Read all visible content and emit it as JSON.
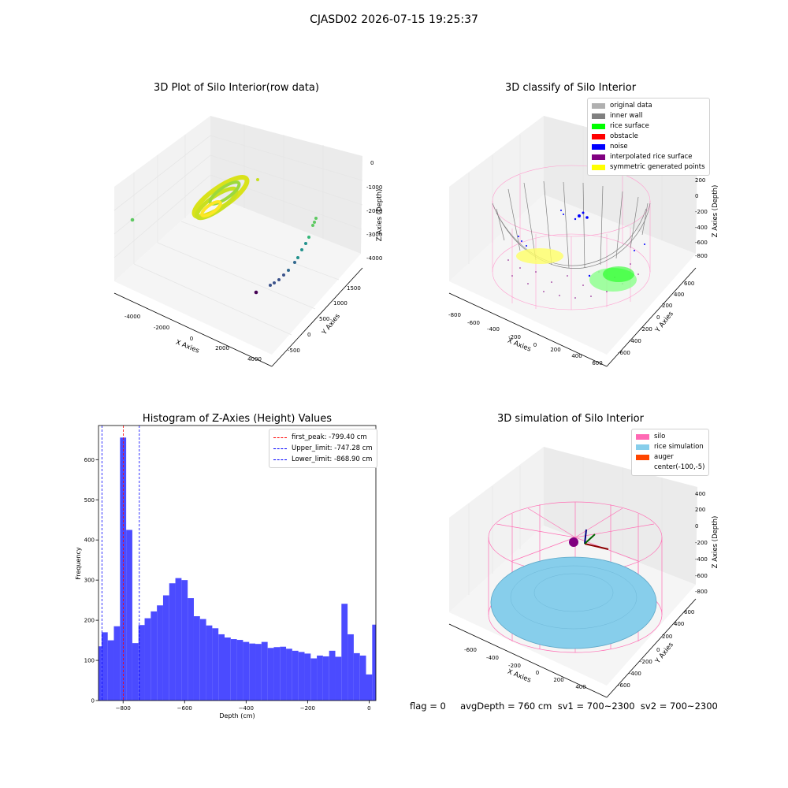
{
  "suptitle": "CJASD02 2026-07-15 19:25:37",
  "chart_data": [
    {
      "type": "scatter",
      "title": "3D Plot of Silo Interior(row data)",
      "xlabel": "X Axies",
      "ylabel": "Y Axies",
      "zlabel": "Z Axies (Depth)",
      "x_ticks": [
        "-4000",
        "-2000",
        "0",
        "2000",
        "4000"
      ],
      "y_ticks": [
        "-500",
        "0",
        "500",
        "1000",
        "1500"
      ],
      "z_ticks": [
        "0",
        "-1000",
        "-2000",
        "-3000",
        "-4000"
      ],
      "colormap": [
        "#440154",
        "#3b528b",
        "#21918c",
        "#5ec962",
        "#fde725"
      ]
    },
    {
      "type": "scatter",
      "title": "3D classify of Silo Interior",
      "xlabel": "X Axies",
      "ylabel": "Y Axies",
      "zlabel": "Z Axies (Depth)",
      "x_ticks": [
        "-800",
        "-600",
        "-400",
        "-200",
        "0",
        "200",
        "400",
        "600"
      ],
      "y_ticks": [
        "-600",
        "-400",
        "-200",
        "0",
        "200",
        "400",
        "600"
      ],
      "z_ticks": [
        "200",
        "0",
        "-200",
        "-400",
        "-600",
        "-800"
      ],
      "z_ticks_partial": [
        "400"
      ],
      "legend": [
        {
          "label": "original data",
          "color": "#b0b0b0"
        },
        {
          "label": "inner wall",
          "color": "#808080"
        },
        {
          "label": "rice surface",
          "color": "#00ff00"
        },
        {
          "label": "obstacle",
          "color": "#ff0000"
        },
        {
          "label": "noise",
          "color": "#0000ff"
        },
        {
          "label": "interpolated rice surface",
          "color": "#800080"
        },
        {
          "label": "symmetric generated points",
          "color": "#ffff00"
        }
      ]
    },
    {
      "type": "bar",
      "title": "Histogram of Z-Axies (Height) Values",
      "xlabel": "Depth (cm)",
      "ylabel": "Frequency",
      "bar_color": "#4b4bff",
      "xlim": [
        -880,
        22
      ],
      "ylim": [
        0,
        685
      ],
      "x_ticks": [
        -800,
        -600,
        -400,
        -200,
        0
      ],
      "y_ticks": [
        0,
        100,
        200,
        300,
        400,
        500,
        600
      ],
      "bin_width": 20,
      "bins": [
        {
          "x": -880,
          "count": 135
        },
        {
          "x": -860,
          "count": 170
        },
        {
          "x": -840,
          "count": 150
        },
        {
          "x": -820,
          "count": 185
        },
        {
          "x": -800,
          "count": 655
        },
        {
          "x": -780,
          "count": 425
        },
        {
          "x": -760,
          "count": 143
        },
        {
          "x": -740,
          "count": 188
        },
        {
          "x": -720,
          "count": 205
        },
        {
          "x": -700,
          "count": 222
        },
        {
          "x": -680,
          "count": 237
        },
        {
          "x": -660,
          "count": 262
        },
        {
          "x": -640,
          "count": 292
        },
        {
          "x": -620,
          "count": 305
        },
        {
          "x": -600,
          "count": 300
        },
        {
          "x": -580,
          "count": 255
        },
        {
          "x": -560,
          "count": 210
        },
        {
          "x": -540,
          "count": 203
        },
        {
          "x": -520,
          "count": 187
        },
        {
          "x": -500,
          "count": 180
        },
        {
          "x": -480,
          "count": 165
        },
        {
          "x": -460,
          "count": 157
        },
        {
          "x": -440,
          "count": 153
        },
        {
          "x": -420,
          "count": 151
        },
        {
          "x": -400,
          "count": 146
        },
        {
          "x": -380,
          "count": 142
        },
        {
          "x": -360,
          "count": 141
        },
        {
          "x": -340,
          "count": 146
        },
        {
          "x": -320,
          "count": 131
        },
        {
          "x": -300,
          "count": 133
        },
        {
          "x": -280,
          "count": 134
        },
        {
          "x": -260,
          "count": 129
        },
        {
          "x": -240,
          "count": 124
        },
        {
          "x": -220,
          "count": 121
        },
        {
          "x": -200,
          "count": 117
        },
        {
          "x": -180,
          "count": 105
        },
        {
          "x": -160,
          "count": 112
        },
        {
          "x": -140,
          "count": 110
        },
        {
          "x": -120,
          "count": 124
        },
        {
          "x": -100,
          "count": 109
        },
        {
          "x": -80,
          "count": 241
        },
        {
          "x": -60,
          "count": 165
        },
        {
          "x": -40,
          "count": 118
        },
        {
          "x": -20,
          "count": 112
        },
        {
          "x": 0,
          "count": 65
        },
        {
          "x": 20,
          "count": 189
        }
      ],
      "vlines": [
        {
          "label": "first_peak: -799.40 cm",
          "value": -799.4,
          "color": "#ff0000"
        },
        {
          "label": "Upper_limit: -747.28 cm",
          "value": -747.28,
          "color": "#0000ff"
        },
        {
          "label": "Lower_limit: -868.90 cm",
          "value": -868.9,
          "color": "#0000ff"
        }
      ]
    },
    {
      "type": "scatter",
      "title": "3D simulation of Silo Interior",
      "xlabel": "X Axies",
      "ylabel": "Y Axies",
      "zlabel": "Z Axies (Depth)",
      "x_ticks": [
        "-600",
        "-400",
        "-200",
        "0",
        "200",
        "400"
      ],
      "y_ticks": [
        "-600",
        "-400",
        "-200",
        "0",
        "200",
        "400",
        "600"
      ],
      "z_ticks": [
        "400",
        "200",
        "0",
        "-200",
        "-400",
        "-600",
        "-800"
      ],
      "legend": [
        {
          "label": "silo",
          "color": "#ff69b4"
        },
        {
          "label": "rice simulation",
          "color": "#87ceeb"
        },
        {
          "label": "auger",
          "color": "#ff4500"
        },
        {
          "label": "center(-100,-5)",
          "color": "#ffffff"
        }
      ]
    }
  ],
  "footer": "flag = 0     avgDepth = 760 cm  sv1 = 700~2300  sv2 = 700~2300"
}
